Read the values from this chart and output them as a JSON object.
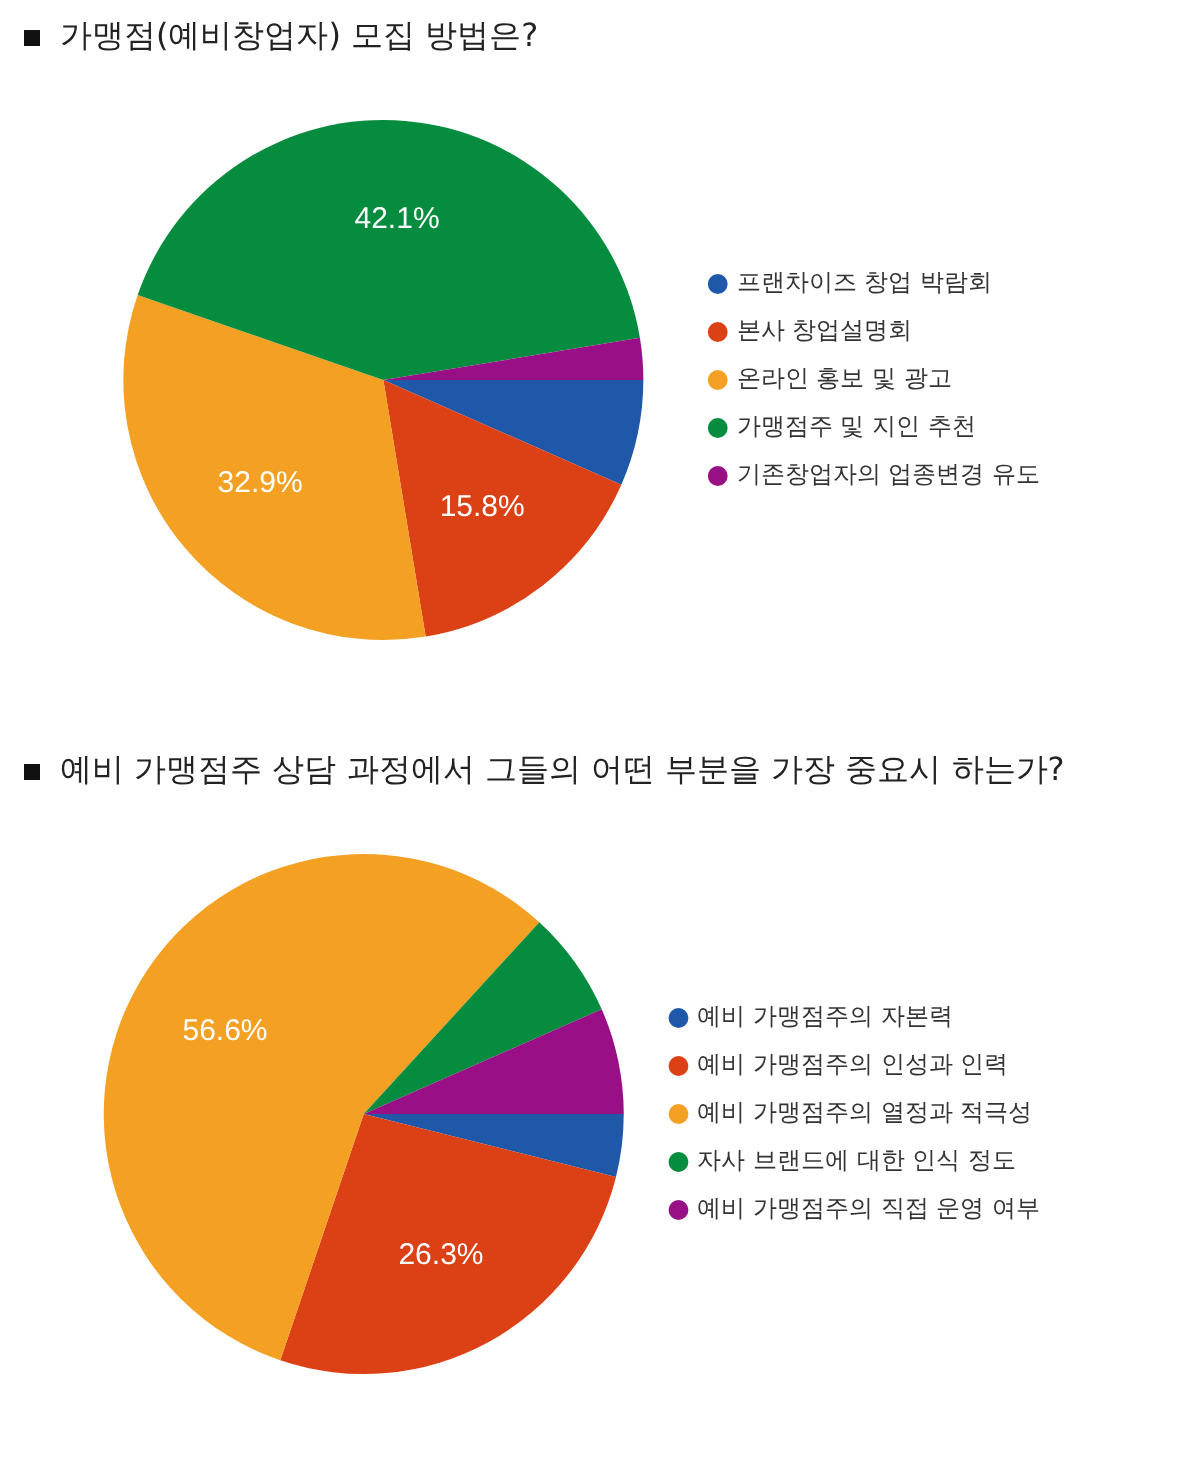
{
  "chart_data": [
    {
      "type": "pie",
      "title": "가맹점(예비창업자) 모집 방법은?",
      "categories": [
        "프랜차이즈 창업 박람회",
        "본사 창업설명회",
        "온라인 홍보 및 광고",
        "가맹점주 및 지인 추천",
        "기존창업자의 업종변경 유도"
      ],
      "values": [
        6.6,
        15.8,
        32.9,
        42.1,
        2.6
      ],
      "colors": [
        "#1f58a8",
        "#dc4015",
        "#f4a023",
        "#068c3f",
        "#980f86"
      ],
      "value_labels": [
        null,
        "15.8%",
        "32.9%",
        "42.1%",
        null
      ],
      "legend": "right"
    },
    {
      "type": "pie",
      "title": "예비 가맹점주 상담 과정에서 그들의 어떤 부분을 가장 중요시 하는가?",
      "categories": [
        "예비 가맹점주의 자본력",
        "예비 가맹점주의 인성과 인력",
        "예비 가맹점주의 열정과 적극성",
        "자사 브랜드에 대한 인식 정도",
        "예비 가맹점주의 직접 운영 여부"
      ],
      "values": [
        3.9,
        26.3,
        56.6,
        6.6,
        6.6
      ],
      "colors": [
        "#1f58a8",
        "#dc4015",
        "#f4a023",
        "#068c3f",
        "#980f86"
      ],
      "value_labels": [
        null,
        "26.3%",
        "56.6%",
        null,
        null
      ],
      "legend": "right"
    }
  ]
}
